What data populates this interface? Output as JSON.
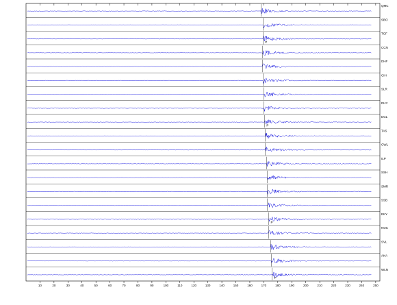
{
  "chart_data": {
    "type": "seismogram",
    "xlim": [
      0,
      253
    ],
    "xticks": [
      10,
      20,
      30,
      40,
      50,
      60,
      70,
      80,
      90,
      100,
      110,
      120,
      130,
      140,
      150,
      160,
      170,
      180,
      190,
      200,
      210,
      220,
      230,
      240,
      250
    ],
    "traces": [
      {
        "label": "QMC",
        "arrival": 168
      },
      {
        "label": "SBO",
        "arrival": 169.5
      },
      {
        "label": "TCF",
        "arrival": 169.5,
        "phase": "P"
      },
      {
        "label": "CCN",
        "arrival": 169
      },
      {
        "label": "DHF",
        "arrival": 169
      },
      {
        "label": "CIH",
        "arrival": 169.5
      },
      {
        "label": "SLR",
        "arrival": 170
      },
      {
        "label": "DHY",
        "arrival": 170
      },
      {
        "label": "DGL",
        "arrival": 170.5,
        "phase": "P"
      },
      {
        "label": "TAS",
        "arrival": 171
      },
      {
        "label": "CWL",
        "arrival": 171
      },
      {
        "label": "ILP",
        "arrival": 172
      },
      {
        "label": "SSH",
        "arrival": 172.5
      },
      {
        "label": "SMR",
        "arrival": 172.5
      },
      {
        "label": "SSB",
        "arrival": 172.5
      },
      {
        "label": "EKY",
        "arrival": 173.5,
        "phase": "P"
      },
      {
        "label": "NOC",
        "arrival": 173.5
      },
      {
        "label": "SVL",
        "arrival": 175
      },
      {
        "label": "AKA",
        "arrival": 175.5
      },
      {
        "label": "WLN",
        "arrival": 176,
        "phase": "P"
      }
    ]
  }
}
